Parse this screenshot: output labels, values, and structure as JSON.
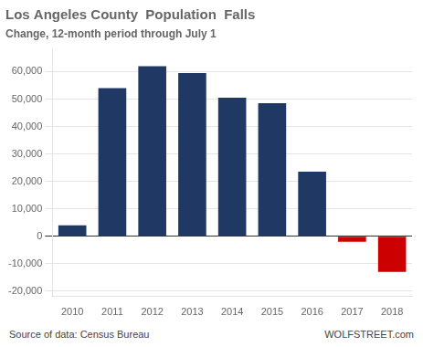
{
  "chart_data": {
    "type": "bar",
    "title": "Los Angeles County  Population  Falls",
    "subtitle": "Change, 12-month period through July 1",
    "categories": [
      "2010",
      "2011",
      "2012",
      "2013",
      "2014",
      "2015",
      "2016",
      "2017",
      "2018"
    ],
    "values": [
      4000,
      54000,
      62000,
      59500,
      50500,
      48500,
      23500,
      -2000,
      -13000
    ],
    "colors": [
      "#1f3864",
      "#1f3864",
      "#1f3864",
      "#1f3864",
      "#1f3864",
      "#1f3864",
      "#1f3864",
      "#cc0000",
      "#cc0000"
    ],
    "ylim": [
      -22000,
      68000
    ],
    "yticks": [
      {
        "value": -20000,
        "label": "-20,000"
      },
      {
        "value": -10000,
        "label": "-10,000"
      },
      0,
      {
        "value": 10000,
        "label": "10,000"
      },
      {
        "value": 20000,
        "label": "20,000"
      },
      {
        "value": 30000,
        "label": "30,000"
      },
      {
        "value": 40000,
        "label": "40,000"
      },
      {
        "value": 50000,
        "label": "50,000"
      },
      {
        "value": 60000,
        "label": "60,000"
      }
    ],
    "grid": true,
    "annotations": [
      "Source of data: Census Bureau",
      "WOLFSTREET.com"
    ]
  }
}
